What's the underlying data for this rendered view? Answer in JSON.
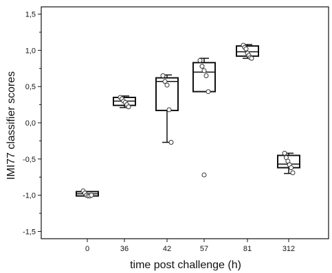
{
  "chart_data": {
    "type": "box",
    "xlabel": "time post challenge (h)",
    "ylabel": "IMI77 classifier scores",
    "categories": [
      "0",
      "36",
      "42",
      "57",
      "81",
      "312"
    ],
    "ylim": [
      -1.6,
      1.6
    ],
    "yticks": [
      1.5,
      1.0,
      0.5,
      0.0,
      -0.5,
      -1.0,
      -1.5
    ],
    "ytick_labels": [
      "1,5",
      "1,0",
      "0,5",
      "0,0",
      "-0,5",
      "-1,0",
      "-1,5"
    ],
    "grid": false,
    "boxes": [
      {
        "category": "0",
        "whisker_low": -1.01,
        "q1": -1.01,
        "median": -0.98,
        "q3": -0.95,
        "whisker_high": -0.95,
        "points": [
          -0.94,
          -0.97,
          -1.0,
          -1.01,
          -1.01,
          -1.0
        ]
      },
      {
        "category": "36",
        "whisker_low": 0.21,
        "q1": 0.24,
        "median": 0.3,
        "q3": 0.35,
        "whisker_high": 0.37,
        "points": [
          0.35,
          0.33,
          0.3,
          0.28,
          0.25,
          0.22
        ]
      },
      {
        "category": "42",
        "whisker_low": -0.27,
        "q1": 0.17,
        "median": 0.57,
        "q3": 0.62,
        "whisker_high": 0.66,
        "points": [
          0.65,
          0.57,
          0.52,
          0.18,
          -0.27
        ]
      },
      {
        "category": "57",
        "whisker_low": 0.43,
        "q1": 0.43,
        "median": 0.7,
        "q3": 0.83,
        "whisker_high": 0.89,
        "points": [
          0.86,
          0.78,
          0.72,
          0.65,
          0.43
        ],
        "outliers": [
          -0.72
        ]
      },
      {
        "category": "81",
        "whisker_low": 0.89,
        "q1": 0.92,
        "median": 0.98,
        "q3": 1.06,
        "whisker_high": 1.08,
        "points": [
          1.07,
          1.04,
          1.02,
          0.96,
          0.93,
          0.9,
          0.89
        ]
      },
      {
        "category": "312",
        "whisker_low": -0.7,
        "q1": -0.62,
        "median": -0.57,
        "q3": -0.45,
        "whisker_high": -0.42,
        "points": [
          -0.42,
          -0.48,
          -0.53,
          -0.58,
          -0.62,
          -0.69
        ]
      }
    ],
    "colors": {
      "box_edge": "#111111",
      "point_fill": "#ffffff",
      "point_edge": "#333333"
    }
  }
}
